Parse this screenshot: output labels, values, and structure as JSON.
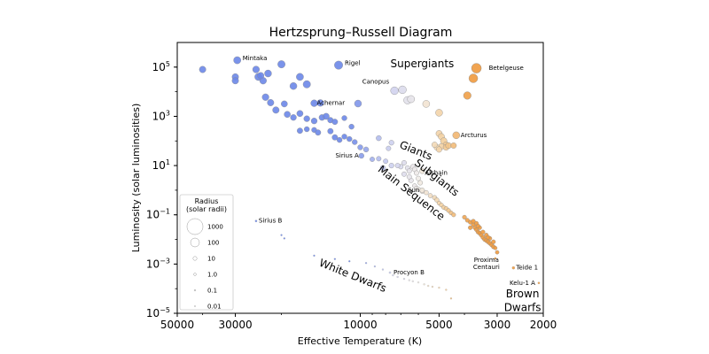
{
  "chart_data": {
    "type": "scatter",
    "title": "Hertzsprung–Russell Diagram",
    "xlabel": "Effective Temperature (K)",
    "ylabel": "Luminosity (solar luminosities)",
    "x_scale": "log",
    "x_reversed": true,
    "xlim": [
      50000,
      2000
    ],
    "y_scale": "log",
    "ylim": [
      1e-05,
      1000000.0
    ],
    "x_ticks": [
      {
        "value": 50000,
        "label": "50000"
      },
      {
        "value": 30000,
        "label": "30000"
      },
      {
        "value": 10000,
        "label": "10000"
      },
      {
        "value": 5000,
        "label": "5000"
      },
      {
        "value": 3000,
        "label": "3000"
      },
      {
        "value": 2000,
        "label": "2000"
      }
    ],
    "y_ticks": [
      {
        "value": 100000.0,
        "base": "10",
        "exp": "5"
      },
      {
        "value": 1000.0,
        "base": "10",
        "exp": "3"
      },
      {
        "value": 10.0,
        "base": "10",
        "exp": "1"
      },
      {
        "value": 0.1,
        "base": "10",
        "exp": "−1"
      },
      {
        "value": 0.001,
        "base": "10",
        "exp": "−3"
      },
      {
        "value": 1e-05,
        "base": "10",
        "exp": "−5"
      }
    ],
    "colors": {
      "hot": "#6b87e8",
      "mid": "#c9cdf0",
      "white": "#f1ece8",
      "warm": "#f3cf9c",
      "cool": "#f09a3e",
      "edge": "#8a8a8a"
    },
    "region_labels": [
      {
        "text": "Supergiants",
        "x": 5800,
        "y": 100000,
        "rotate": 0
      },
      {
        "text": "Giants",
        "x": 6200,
        "y": 30,
        "rotate": 22
      },
      {
        "text": "Subgiants",
        "x": 5200,
        "y": 2.5,
        "rotate": 38
      },
      {
        "text": "Main Sequence",
        "x": 6500,
        "y": 0.6,
        "rotate": 38
      },
      {
        "text": "White Dwarfs",
        "x": 10800,
        "y": 0.00025,
        "rotate": 22
      },
      {
        "text": "Brown",
        "x": 2400,
        "y": 4.5e-05,
        "rotate": 0
      },
      {
        "text": "Dwarfs",
        "x": 2400,
        "y": 1.25e-05,
        "rotate": 0
      }
    ],
    "named_stars": [
      {
        "name": "Mintaka",
        "x": 29500,
        "y": 190000,
        "r": 1.2
      },
      {
        "name": "Rigel",
        "x": 12100,
        "y": 120000,
        "r": 1.9
      },
      {
        "name": "Betelgeuse",
        "x": 3600,
        "y": 90000,
        "r": 3.4
      },
      {
        "name": "Canopus",
        "x": 7400,
        "y": 11000,
        "r": 1.5
      },
      {
        "name": "Achernar",
        "x": 15000,
        "y": 3400,
        "r": 1.0
      },
      {
        "name": "Arcturus",
        "x": 4300,
        "y": 170,
        "r": 1.1
      },
      {
        "name": "Sirius A",
        "x": 9900,
        "y": 25,
        "r": 0.5
      },
      {
        "name": "Alshain",
        "x": 5800,
        "y": 6,
        "r": 0.5
      },
      {
        "name": "Sun",
        "x": 5800,
        "y": 1.0,
        "r": 0.4
      },
      {
        "name": "Sirius B",
        "x": 25000,
        "y": 0.056,
        "r": 0.1
      },
      {
        "name": "Proxima Centauri",
        "x": 3050,
        "y": 0.0017,
        "r": 0.1
      },
      {
        "name": "Procyon B",
        "x": 7700,
        "y": 0.00045,
        "r": 0.1
      },
      {
        "name": "Teide 1",
        "x": 2600,
        "y": 0.0007,
        "r": 0.15
      },
      {
        "name": "Kelu-1 A",
        "x": 2080,
        "y": 0.00017,
        "r": 0.1
      }
    ],
    "named_label_text": {
      "Mintaka": [
        "Mintaka"
      ],
      "Rigel": [
        "Rigel"
      ],
      "Betelgeuse": [
        "Betelgeuse"
      ],
      "Canopus": [
        "Canopus"
      ],
      "Achernar": [
        "Achernar"
      ],
      "Arcturus": [
        "Arcturus"
      ],
      "Sirius A": [
        "Sirius A"
      ],
      "Alshain": [
        "Alshain"
      ],
      "Sun": [
        "Sun"
      ],
      "Sirius B": [
        "Sirius B"
      ],
      "Proxima Centauri": [
        "Proxima",
        "Centauri"
      ],
      "Procyon B": [
        "Procyon B"
      ],
      "Teide 1": [
        "Teide 1"
      ],
      "Kelu-1 A": [
        "Kelu-1 A"
      ]
    },
    "stars": [
      [
        40000,
        80000,
        0.9
      ],
      [
        30000,
        40000,
        0.9
      ],
      [
        30000,
        28000,
        0.9
      ],
      [
        25000,
        80000,
        1.0
      ],
      [
        24500,
        40000,
        1.2
      ],
      [
        23500,
        28000,
        1.0
      ],
      [
        22500,
        55000,
        1.1
      ],
      [
        24000,
        45000,
        0.9
      ],
      [
        20000,
        130000,
        1.3
      ],
      [
        17000,
        40000,
        1.2
      ],
      [
        16000,
        20000,
        1.3
      ],
      [
        18000,
        17000,
        1.1
      ],
      [
        23000,
        6000,
        1.0
      ],
      [
        22000,
        3600,
        0.9
      ],
      [
        21000,
        1800,
        0.9
      ],
      [
        19500,
        3200,
        0.8
      ],
      [
        19000,
        1200,
        0.8
      ],
      [
        18000,
        900,
        0.7
      ],
      [
        17000,
        1300,
        0.8
      ],
      [
        16000,
        800,
        0.7
      ],
      [
        15000,
        650,
        0.7
      ],
      [
        14000,
        900,
        0.7
      ],
      [
        13500,
        1000,
        0.8
      ],
      [
        13000,
        700,
        0.6
      ],
      [
        12500,
        600,
        0.6
      ],
      [
        17000,
        260,
        0.6
      ],
      [
        16000,
        300,
        0.5
      ],
      [
        15000,
        280,
        0.5
      ],
      [
        14500,
        220,
        0.6
      ],
      [
        13000,
        250,
        0.6
      ],
      [
        12500,
        140,
        0.6
      ],
      [
        12000,
        110,
        0.5
      ],
      [
        11500,
        150,
        0.5
      ],
      [
        11000,
        120,
        0.5
      ],
      [
        10500,
        90,
        0.5
      ],
      [
        10000,
        55,
        0.5
      ],
      [
        9500,
        45,
        0.5
      ],
      [
        9000,
        18,
        0.4
      ],
      [
        8500,
        19,
        0.4
      ],
      [
        8000,
        15,
        0.4
      ],
      [
        7800,
        50,
        0.4
      ],
      [
        8200,
        8,
        0.5
      ],
      [
        8500,
        130,
        0.5
      ],
      [
        10200,
        3300,
        1.1
      ],
      [
        14200,
        3500,
        1.0
      ],
      [
        10800,
        380,
        0.5
      ],
      [
        11500,
        850,
        0.5
      ],
      [
        7600,
        85,
        0.45
      ],
      [
        7600,
        10,
        0.45
      ],
      [
        7000,
        9,
        0.4
      ],
      [
        6800,
        13,
        0.4
      ],
      [
        7200,
        10,
        0.4
      ],
      [
        6600,
        8,
        0.4
      ],
      [
        6500,
        6,
        0.4
      ],
      [
        6300,
        9,
        0.4
      ],
      [
        6200,
        7,
        0.4
      ],
      [
        6100,
        5,
        0.4
      ],
      [
        6000,
        3,
        0.4
      ],
      [
        5900,
        2,
        0.4
      ],
      [
        6400,
        2.5,
        0.4
      ],
      [
        6200,
        1.5,
        0.35
      ],
      [
        6100,
        1.2,
        0.35
      ],
      [
        6000,
        1.1,
        0.35
      ],
      [
        5800,
        0.9,
        0.35
      ],
      [
        5600,
        0.8,
        0.35
      ],
      [
        5400,
        0.6,
        0.35
      ],
      [
        5200,
        0.5,
        0.35
      ],
      [
        5100,
        0.4,
        0.35
      ],
      [
        5000,
        0.3,
        0.3
      ],
      [
        4900,
        0.25,
        0.3
      ],
      [
        4800,
        0.2,
        0.3
      ],
      [
        4700,
        0.18,
        0.3
      ],
      [
        4600,
        0.15,
        0.3
      ],
      [
        4500,
        0.12,
        0.3
      ],
      [
        4400,
        0.1,
        0.3
      ],
      [
        6500,
        3.5,
        0.4
      ],
      [
        6800,
        4.5,
        0.4
      ],
      [
        6900,
        12000,
        1.5
      ],
      [
        6600,
        4500,
        1.4
      ],
      [
        6400,
        5000,
        1.2
      ],
      [
        5600,
        3200,
        1.1
      ],
      [
        5000,
        1400,
        1.1
      ],
      [
        3700,
        35000,
        2.3
      ],
      [
        3900,
        7000,
        1.4
      ],
      [
        5000,
        200,
        0.8
      ],
      [
        4900,
        150,
        0.8
      ],
      [
        4800,
        100,
        0.9
      ],
      [
        4700,
        70,
        0.7
      ],
      [
        4900,
        60,
        0.7
      ],
      [
        4700,
        55,
        0.7
      ],
      [
        4600,
        65,
        0.7
      ],
      [
        5100,
        55,
        0.6
      ],
      [
        5200,
        70,
        0.6
      ],
      [
        5000,
        45,
        0.6
      ],
      [
        4400,
        65,
        0.6
      ],
      [
        4000,
        0.08,
        0.3
      ],
      [
        3900,
        0.06,
        0.3
      ],
      [
        3800,
        0.05,
        0.3
      ],
      [
        3700,
        0.04,
        0.3
      ],
      [
        3650,
        0.03,
        0.3
      ],
      [
        3600,
        0.025,
        0.3
      ],
      [
        3550,
        0.02,
        0.3
      ],
      [
        3500,
        0.018,
        0.3
      ],
      [
        3450,
        0.015,
        0.3
      ],
      [
        3400,
        0.012,
        0.3
      ],
      [
        3350,
        0.01,
        0.3
      ],
      [
        3300,
        0.009,
        0.3
      ],
      [
        3250,
        0.008,
        0.3
      ],
      [
        3200,
        0.007,
        0.3
      ],
      [
        3150,
        0.006,
        0.3
      ],
      [
        3100,
        0.005,
        0.3
      ],
      [
        3700,
        0.055,
        0.3
      ],
      [
        3600,
        0.045,
        0.3
      ],
      [
        3500,
        0.03,
        0.3
      ],
      [
        3400,
        0.02,
        0.3
      ],
      [
        3300,
        0.015,
        0.3
      ],
      [
        3200,
        0.011,
        0.3
      ],
      [
        3100,
        0.008,
        0.3
      ],
      [
        3050,
        0.0045,
        0.25
      ],
      [
        3000,
        0.003,
        0.25
      ],
      [
        3800,
        0.03,
        0.3
      ],
      [
        3550,
        0.035,
        0.3
      ],
      [
        3250,
        0.012,
        0.3
      ],
      [
        20000,
        0.015,
        0.08
      ],
      [
        19500,
        0.011,
        0.08
      ],
      [
        15000,
        0.0022,
        0.08
      ],
      [
        12500,
        0.0016,
        0.08
      ],
      [
        11000,
        0.0013,
        0.08
      ],
      [
        9500,
        0.0011,
        0.08
      ],
      [
        8800,
        0.0008,
        0.08
      ],
      [
        8200,
        0.0006,
        0.08
      ],
      [
        7500,
        0.00035,
        0.08
      ],
      [
        7200,
        0.0003,
        0.08
      ],
      [
        6800,
        0.00025,
        0.08
      ],
      [
        6500,
        0.00022,
        0.08
      ],
      [
        6300,
        0.0002,
        0.08
      ],
      [
        6000,
        0.00018,
        0.08
      ],
      [
        5700,
        0.00015,
        0.08
      ],
      [
        5500,
        0.00013,
        0.08
      ],
      [
        5300,
        0.00012,
        0.08
      ],
      [
        5000,
        0.00011,
        0.08
      ],
      [
        4700,
        9e-05,
        0.08
      ],
      [
        4500,
        4e-05,
        0.08
      ]
    ],
    "legend": {
      "title_lines": [
        "Radius",
        "(solar radii)"
      ],
      "placement": "lower-left",
      "entries": [
        {
          "label": "1000",
          "r": 1000
        },
        {
          "label": "100",
          "r": 100
        },
        {
          "label": "10",
          "r": 10
        },
        {
          "label": "1.0",
          "r": 1
        },
        {
          "label": "0.1",
          "r": 0.1
        },
        {
          "label": "0.01",
          "r": 0.01
        }
      ]
    }
  }
}
